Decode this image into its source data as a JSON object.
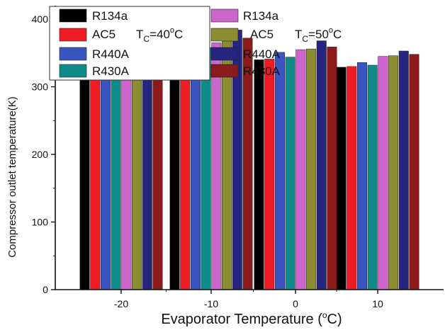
{
  "chart_data": {
    "type": "bar",
    "xlabel": "Evaporator Temperature (°C)",
    "ylabel": "Compressor outlet temperature(K)",
    "categories": [
      "-20",
      "-10",
      "0",
      "10"
    ],
    "ylim": [
      0,
      420
    ],
    "yticks": [
      0,
      100,
      200,
      300,
      400
    ],
    "grid": false,
    "legend_placement": "top",
    "series": [
      {
        "name": "R134a",
        "color": "#000000",
        "values": [
          361,
          352,
          340,
          329
        ]
      },
      {
        "name": "AC5",
        "color": "#ee1c25",
        "values": [
          363,
          354,
          341,
          330
        ]
      },
      {
        "name": "R440A",
        "color": "#3a55c0",
        "values": [
          382,
          368,
          351,
          336
        ]
      },
      {
        "name": "R430A",
        "color": "#0f8b8b",
        "values": [
          368,
          358,
          344,
          332
        ]
      },
      {
        "name": "R134a",
        "color": "#cc66cc",
        "values": [
          374,
          365,
          355,
          345
        ]
      },
      {
        "name": "AC5",
        "color": "#8c8c33",
        "values": [
          378,
          368,
          356,
          346
        ]
      },
      {
        "name": "R440A",
        "color": "#262680",
        "values": [
          397,
          384,
          368,
          353
        ]
      },
      {
        "name": "R430A",
        "color": "#8b1a1a",
        "values": [
          382,
          372,
          359,
          348
        ]
      }
    ],
    "legend_groups": [
      {
        "subscript": "C",
        "value": "=40",
        "unit": "C"
      },
      {
        "subscript": "C",
        "value": "=50",
        "unit": "C"
      }
    ],
    "xlabel_parts": {
      "pre": "Evaporator Temperature (",
      "sup": "o",
      "post": "C)"
    }
  }
}
